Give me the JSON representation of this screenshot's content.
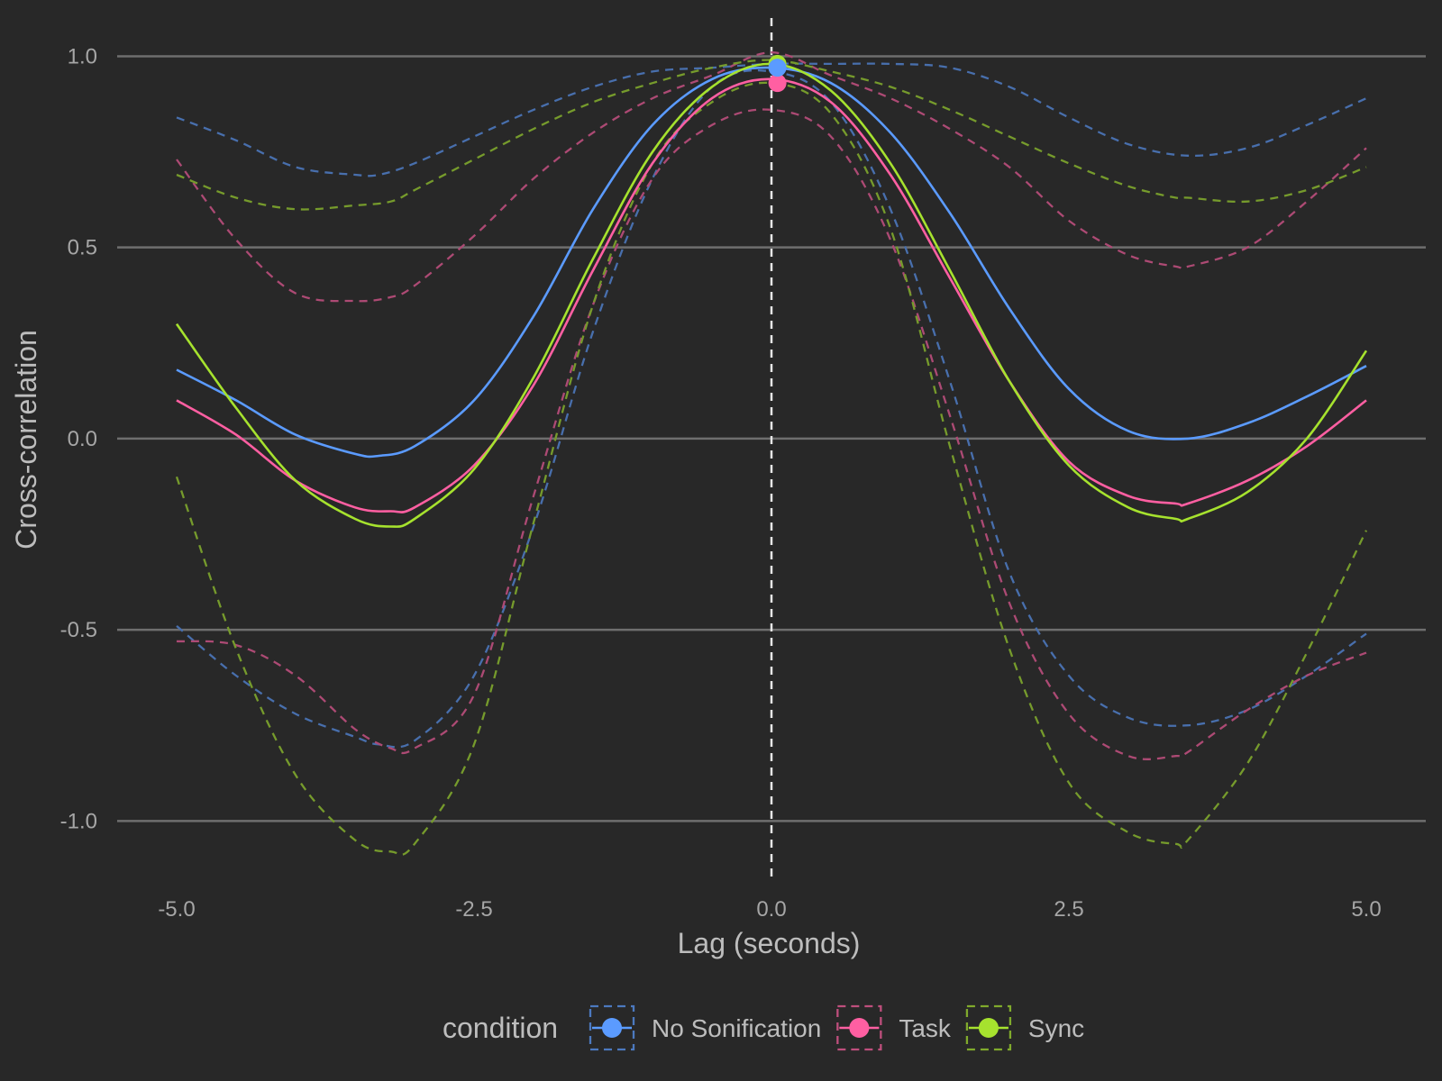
{
  "chart_data": {
    "type": "line",
    "xlabel": "Lag (seconds)",
    "ylabel": "Cross-correlation",
    "xlim": [
      -5.5,
      5.5
    ],
    "ylim": [
      -1.15,
      1.1
    ],
    "x_ticks": [
      -5.0,
      -2.5,
      0.0,
      2.5,
      5.0
    ],
    "x_tick_labels": [
      "-5.0",
      "-2.5",
      "0.0",
      "2.5",
      "5.0"
    ],
    "y_ticks": [
      -1.0,
      -0.5,
      0.0,
      0.5,
      1.0
    ],
    "y_tick_labels": [
      "-1.0",
      "-0.5",
      "0.0",
      "0.5",
      "1.0"
    ],
    "vline_x": 0.0,
    "grid": "horizontal-major",
    "legend_title": "condition",
    "legend_position": "bottom",
    "series": [
      {
        "name": "No Sonification",
        "color": "#5b9bff",
        "x": [
          -5.0,
          -4.5,
          -4.0,
          -3.5,
          -3.3,
          -3.0,
          -2.5,
          -2.0,
          -1.5,
          -1.0,
          -0.5,
          0.0,
          0.5,
          1.0,
          1.5,
          2.0,
          2.5,
          3.0,
          3.5,
          4.0,
          4.5,
          5.0
        ],
        "y": [
          0.18,
          0.1,
          0.01,
          -0.04,
          -0.045,
          -0.02,
          0.1,
          0.32,
          0.6,
          0.82,
          0.94,
          0.97,
          0.93,
          0.8,
          0.59,
          0.34,
          0.13,
          0.02,
          0.0,
          0.04,
          0.11,
          0.19
        ],
        "ci_upper": [
          0.84,
          0.78,
          0.71,
          0.69,
          0.69,
          0.72,
          0.79,
          0.86,
          0.92,
          0.96,
          0.97,
          0.98,
          0.98,
          0.98,
          0.97,
          0.92,
          0.84,
          0.77,
          0.74,
          0.76,
          0.82,
          0.89
        ],
        "ci_lower": [
          -0.49,
          -0.62,
          -0.72,
          -0.78,
          -0.8,
          -0.79,
          -0.62,
          -0.23,
          0.28,
          0.68,
          0.92,
          0.96,
          0.88,
          0.6,
          0.15,
          -0.35,
          -0.62,
          -0.73,
          -0.75,
          -0.71,
          -0.62,
          -0.51
        ],
        "peak": {
          "x": 0.05,
          "y": 0.97
        }
      },
      {
        "name": "Task",
        "color": "#ff5fa2",
        "x": [
          -5.0,
          -4.5,
          -4.0,
          -3.5,
          -3.2,
          -3.0,
          -2.5,
          -2.0,
          -1.5,
          -1.0,
          -0.5,
          0.0,
          0.5,
          1.0,
          1.5,
          2.0,
          2.5,
          3.0,
          3.4,
          3.5,
          4.0,
          4.5,
          5.0
        ],
        "y": [
          0.1,
          0.01,
          -0.11,
          -0.18,
          -0.19,
          -0.18,
          -0.07,
          0.14,
          0.44,
          0.72,
          0.89,
          0.94,
          0.88,
          0.69,
          0.42,
          0.15,
          -0.06,
          -0.15,
          -0.17,
          -0.17,
          -0.11,
          -0.02,
          0.1
        ],
        "ci_upper": [
          0.73,
          0.52,
          0.38,
          0.36,
          0.37,
          0.4,
          0.53,
          0.68,
          0.8,
          0.89,
          0.95,
          1.01,
          0.95,
          0.89,
          0.81,
          0.71,
          0.57,
          0.48,
          0.45,
          0.45,
          0.5,
          0.62,
          0.76
        ],
        "ci_lower": [
          -0.53,
          -0.54,
          -0.62,
          -0.76,
          -0.81,
          -0.81,
          -0.67,
          -0.15,
          0.35,
          0.68,
          0.82,
          0.86,
          0.79,
          0.52,
          0.06,
          -0.43,
          -0.72,
          -0.83,
          -0.83,
          -0.82,
          -0.71,
          -0.62,
          -0.56
        ],
        "peak": {
          "x": 0.05,
          "y": 0.93
        }
      },
      {
        "name": "Sync",
        "color": "#a6e22e",
        "x": [
          -5.0,
          -4.5,
          -4.0,
          -3.5,
          -3.2,
          -3.0,
          -2.5,
          -2.0,
          -1.5,
          -1.0,
          -0.5,
          0.0,
          0.5,
          1.0,
          1.5,
          2.0,
          2.5,
          3.0,
          3.4,
          3.5,
          4.0,
          4.5,
          5.0
        ],
        "y": [
          0.3,
          0.08,
          -0.11,
          -0.21,
          -0.23,
          -0.21,
          -0.08,
          0.16,
          0.47,
          0.75,
          0.92,
          0.98,
          0.91,
          0.72,
          0.44,
          0.15,
          -0.07,
          -0.18,
          -0.21,
          -0.21,
          -0.14,
          0.0,
          0.23
        ],
        "ci_upper": [
          0.69,
          0.63,
          0.6,
          0.61,
          0.62,
          0.65,
          0.73,
          0.81,
          0.88,
          0.93,
          0.97,
          0.99,
          0.96,
          0.92,
          0.86,
          0.79,
          0.72,
          0.66,
          0.63,
          0.63,
          0.62,
          0.65,
          0.71
        ],
        "ci_lower": [
          -0.1,
          -0.55,
          -0.88,
          -1.05,
          -1.08,
          -1.06,
          -0.8,
          -0.22,
          0.35,
          0.72,
          0.88,
          0.93,
          0.85,
          0.55,
          -0.02,
          -0.55,
          -0.9,
          -1.03,
          -1.06,
          -1.05,
          -0.85,
          -0.56,
          -0.24
        ],
        "peak": {
          "x": 0.05,
          "y": 0.98
        }
      }
    ]
  }
}
